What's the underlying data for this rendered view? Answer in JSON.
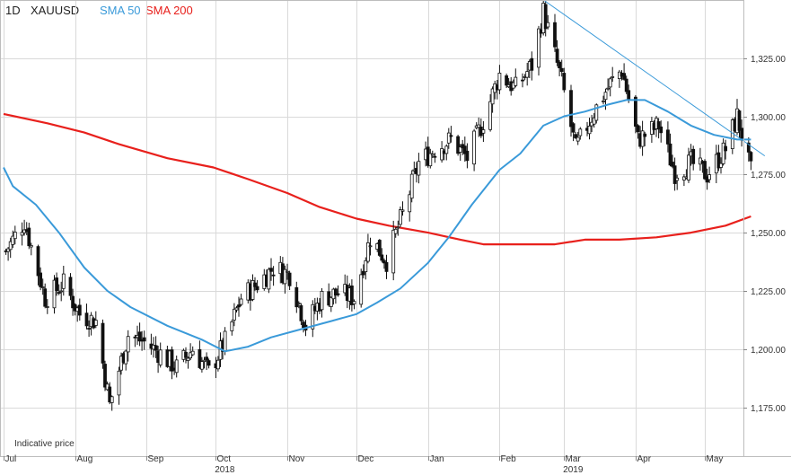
{
  "header": {
    "timeframe": "1D",
    "symbol": "XAUUSD",
    "sma50_label": "SMA 50",
    "sma200_label": "SMA 200"
  },
  "colors": {
    "sma50": "#3a9ad9",
    "sma200": "#e8201c",
    "trendline": "#3a9ad9",
    "candle": "#111111",
    "grid": "#d9d9d9"
  },
  "chart_data": {
    "type": "candlestick",
    "title": "",
    "xlabel": "",
    "ylabel": "",
    "ylim": [
      1150,
      1360
    ],
    "y_ticks": [
      "1,175.00",
      "1,200.00",
      "1,225.00",
      "1,250.00",
      "1,275.00",
      "1,300.00",
      "1,325.00"
    ],
    "y_tick_values": [
      1175,
      1200,
      1225,
      1250,
      1275,
      1300,
      1325
    ],
    "x_tick_labels": [
      "Jul",
      "Aug",
      "Sep",
      "Oct",
      "Nov",
      "Dec",
      "Jan",
      "Feb",
      "Mar",
      "Apr",
      "May"
    ],
    "x_tick_dates": [
      "2018-07-01",
      "2018-08-01",
      "2018-09-01",
      "2018-10-01",
      "2018-11-01",
      "2018-12-01",
      "2019-01-01",
      "2019-02-01",
      "2019-03-01",
      "2019-04-01",
      "2019-05-01"
    ],
    "year_labels": [
      "2018",
      "2019"
    ],
    "year_dates": [
      "2018-10-01",
      "2019-03-01"
    ],
    "grid": true,
    "annotation": "Indicative price",
    "series": [
      {
        "name": "XAUUSD",
        "type": "candlestick",
        "close_path": [
          [
            "2018-07-02",
            1242
          ],
          [
            "2018-07-10",
            1255
          ],
          [
            "2018-07-19",
            1222
          ],
          [
            "2018-07-27",
            1228
          ],
          [
            "2018-08-03",
            1215
          ],
          [
            "2018-08-10",
            1212
          ],
          [
            "2018-08-16",
            1176
          ],
          [
            "2018-08-24",
            1206
          ],
          [
            "2018-08-31",
            1203
          ],
          [
            "2018-09-07",
            1198
          ],
          [
            "2018-09-14",
            1192
          ],
          [
            "2018-09-21",
            1200
          ],
          [
            "2018-09-28",
            1190
          ],
          [
            "2018-10-05",
            1203
          ],
          [
            "2018-10-12",
            1222
          ],
          [
            "2018-10-19",
            1228
          ],
          [
            "2018-10-26",
            1235
          ],
          [
            "2018-11-02",
            1232
          ],
          [
            "2018-11-09",
            1210
          ],
          [
            "2018-11-16",
            1222
          ],
          [
            "2018-11-23",
            1224
          ],
          [
            "2018-11-30",
            1222
          ],
          [
            "2018-12-07",
            1248
          ],
          [
            "2018-12-14",
            1238
          ],
          [
            "2018-12-21",
            1258
          ],
          [
            "2018-12-28",
            1280
          ],
          [
            "2019-01-04",
            1286
          ],
          [
            "2019-01-11",
            1290
          ],
          [
            "2019-01-18",
            1282
          ],
          [
            "2019-01-25",
            1298
          ],
          [
            "2019-02-01",
            1318
          ],
          [
            "2019-02-08",
            1312
          ],
          [
            "2019-02-15",
            1322
          ],
          [
            "2019-02-20",
            1345
          ],
          [
            "2019-02-28",
            1315
          ],
          [
            "2019-03-06",
            1286
          ],
          [
            "2019-03-14",
            1302
          ],
          [
            "2019-03-21",
            1314
          ],
          [
            "2019-03-26",
            1320
          ],
          [
            "2019-04-02",
            1290
          ],
          [
            "2019-04-11",
            1296
          ],
          [
            "2019-04-18",
            1276
          ],
          [
            "2019-04-25",
            1280
          ],
          [
            "2019-05-02",
            1275
          ],
          [
            "2019-05-10",
            1286
          ],
          [
            "2019-05-15",
            1300
          ],
          [
            "2019-05-21",
            1276
          ]
        ]
      },
      {
        "name": "SMA 50",
        "type": "line",
        "points": [
          [
            "2018-07-01",
            1278
          ],
          [
            "2018-07-05",
            1270
          ],
          [
            "2018-07-15",
            1262
          ],
          [
            "2018-07-25",
            1250
          ],
          [
            "2018-08-05",
            1235
          ],
          [
            "2018-08-15",
            1225
          ],
          [
            "2018-08-25",
            1218
          ],
          [
            "2018-09-10",
            1210
          ],
          [
            "2018-09-25",
            1204
          ],
          [
            "2018-10-05",
            1199
          ],
          [
            "2018-10-15",
            1201
          ],
          [
            "2018-10-25",
            1205
          ],
          [
            "2018-11-05",
            1208
          ],
          [
            "2018-11-20",
            1212
          ],
          [
            "2018-12-01",
            1215
          ],
          [
            "2018-12-10",
            1220
          ],
          [
            "2018-12-20",
            1226
          ],
          [
            "2019-01-01",
            1237
          ],
          [
            "2019-01-10",
            1248
          ],
          [
            "2019-01-20",
            1262
          ],
          [
            "2019-02-01",
            1277
          ],
          [
            "2019-02-10",
            1284
          ],
          [
            "2019-02-20",
            1296
          ],
          [
            "2019-03-01",
            1300
          ],
          [
            "2019-03-10",
            1302
          ],
          [
            "2019-03-20",
            1305
          ],
          [
            "2019-03-28",
            1307
          ],
          [
            "2019-04-05",
            1307
          ],
          [
            "2019-04-15",
            1302
          ],
          [
            "2019-04-25",
            1296
          ],
          [
            "2019-05-05",
            1292
          ],
          [
            "2019-05-15",
            1290
          ],
          [
            "2019-05-21",
            1290
          ]
        ]
      },
      {
        "name": "SMA 200",
        "type": "line",
        "points": [
          [
            "2018-07-01",
            1301
          ],
          [
            "2018-07-20",
            1297
          ],
          [
            "2018-08-05",
            1293
          ],
          [
            "2018-08-20",
            1288
          ],
          [
            "2018-09-10",
            1282
          ],
          [
            "2018-09-30",
            1278
          ],
          [
            "2018-10-15",
            1273
          ],
          [
            "2018-11-01",
            1267
          ],
          [
            "2018-11-15",
            1261
          ],
          [
            "2018-12-01",
            1256
          ],
          [
            "2018-12-15",
            1253
          ],
          [
            "2019-01-01",
            1250
          ],
          [
            "2019-01-15",
            1247
          ],
          [
            "2019-01-25",
            1245
          ],
          [
            "2019-02-10",
            1245
          ],
          [
            "2019-02-25",
            1245
          ],
          [
            "2019-03-10",
            1247
          ],
          [
            "2019-03-25",
            1247
          ],
          [
            "2019-04-10",
            1248
          ],
          [
            "2019-04-25",
            1250
          ],
          [
            "2019-05-10",
            1253
          ],
          [
            "2019-05-21",
            1257
          ]
        ]
      },
      {
        "type": "line",
        "points": [
          [
            "2019-02-20",
            1350
          ],
          [
            "2019-05-27",
            1283
          ]
        ]
      }
    ]
  }
}
